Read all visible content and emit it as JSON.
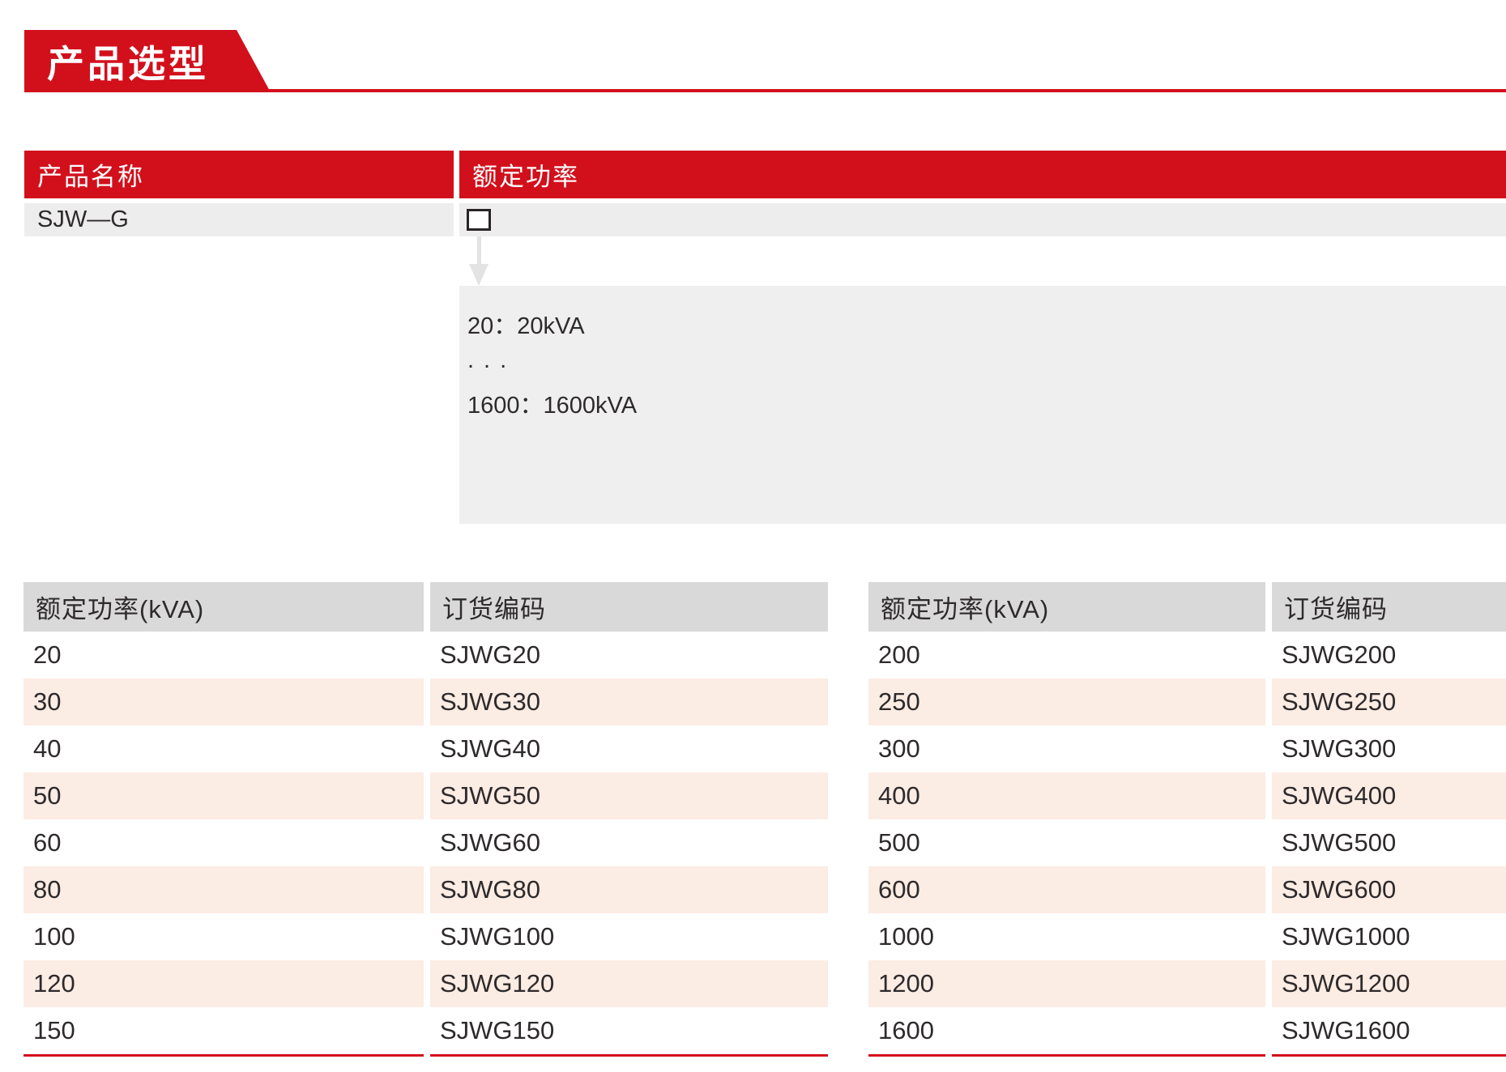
{
  "banner": {
    "title": "产品选型"
  },
  "selector_table": {
    "product_header": "产品名称",
    "power_header": "额定功率",
    "product_model": "SJW—G",
    "power_options": {
      "first": "20：20kVA",
      "ellipsis": "...",
      "last": "1600：1600kVA"
    }
  },
  "order_tables": {
    "left": {
      "power_header": "额定功率(kVA)",
      "code_header": "订货编码",
      "rows": [
        {
          "power": "20",
          "code": "SJWG20"
        },
        {
          "power": "30",
          "code": "SJWG30"
        },
        {
          "power": "40",
          "code": "SJWG40"
        },
        {
          "power": "50",
          "code": "SJWG50"
        },
        {
          "power": "60",
          "code": "SJWG60"
        },
        {
          "power": "80",
          "code": "SJWG80"
        },
        {
          "power": "100",
          "code": "SJWG100"
        },
        {
          "power": "120",
          "code": "SJWG120"
        },
        {
          "power": "150",
          "code": "SJWG150"
        }
      ]
    },
    "right": {
      "power_header": "额定功率(kVA)",
      "code_header": "订货编码",
      "rows": [
        {
          "power": "200",
          "code": "SJWG200"
        },
        {
          "power": "250",
          "code": "SJWG250"
        },
        {
          "power": "300",
          "code": "SJWG300"
        },
        {
          "power": "400",
          "code": "SJWG400"
        },
        {
          "power": "500",
          "code": "SJWG500"
        },
        {
          "power": "600",
          "code": "SJWG600"
        },
        {
          "power": "1000",
          "code": "SJWG1000"
        },
        {
          "power": "1200",
          "code": "SJWG1200"
        },
        {
          "power": "1600",
          "code": "SJWG1600"
        }
      ]
    }
  },
  "colors": {
    "accent_red": "#d2101c",
    "row_alt_pink": "#fbece4",
    "table_header_gray": "#d9d9d9",
    "panel_gray": "#efefef",
    "row_gray": "#ededed",
    "text_dark": "#2e2a2b"
  }
}
